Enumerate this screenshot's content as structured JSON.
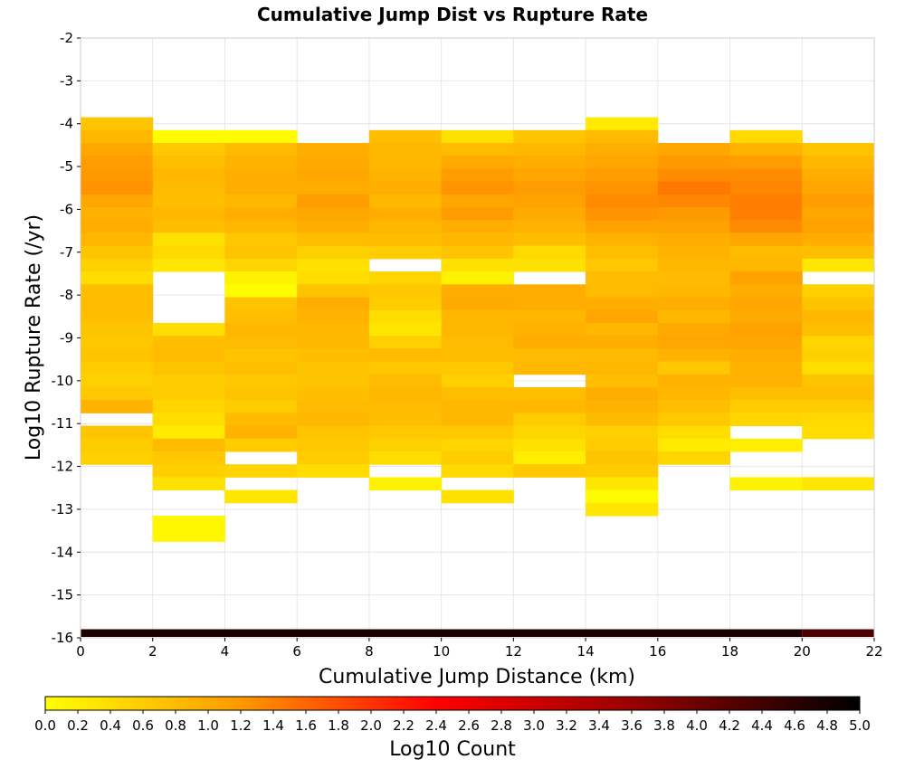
{
  "chart_data": {
    "type": "heatmap",
    "title": "Cumulative Jump Dist vs Rupture Rate",
    "xlabel": "Cumulative Jump Distance (km)",
    "ylabel": "Log10 Rupture Rate (/yr)",
    "xlim": [
      0,
      22
    ],
    "ylim": [
      -16,
      -2
    ],
    "x_ticks": [
      0,
      2,
      4,
      6,
      8,
      10,
      12,
      14,
      16,
      18,
      20,
      22
    ],
    "y_ticks": [
      -2,
      -3,
      -4,
      -5,
      -6,
      -7,
      -8,
      -9,
      -10,
      -11,
      -12,
      -13,
      -14,
      -15,
      -16
    ],
    "x_bin_width": 2,
    "y_bin_height": 0.3,
    "grid": true,
    "colorbar": {
      "label": "Log10 Count",
      "range": [
        0,
        5
      ],
      "ticks": [
        "0.0",
        "0.2",
        "0.4",
        "0.6",
        "0.8",
        "1.0",
        "1.2",
        "1.4",
        "1.6",
        "1.8",
        "2.0",
        "2.2",
        "2.4",
        "2.6",
        "2.8",
        "3.0",
        "3.2",
        "3.4",
        "3.6",
        "3.8",
        "4.0",
        "4.2",
        "4.6",
        "4.8",
        "5.0"
      ],
      "tick_values": [
        0,
        0.2,
        0.4,
        0.6,
        0.8,
        1.0,
        1.2,
        1.4,
        1.6,
        1.8,
        2.0,
        2.2,
        2.4,
        2.6,
        2.8,
        3.0,
        3.2,
        3.4,
        3.6,
        3.8,
        4.0,
        4.2,
        4.6,
        4.8,
        5.0
      ],
      "extra_tick": {
        "label": "4.4",
        "value": 4.4
      },
      "colors": [
        "#ffff00",
        "#ff9900",
        "#ff0000",
        "#990000",
        "#000000"
      ]
    },
    "columns": [
      {
        "x": 0,
        "y_top": -3.85,
        "values": [
          0.7,
          0.85,
          1.05,
          1.15,
          1.2,
          1.25,
          1.05,
          0.9,
          0.95,
          0.85,
          0.7,
          0.55,
          0.4,
          0.75,
          0.8,
          0.75,
          0.7,
          0.65,
          0.7,
          0.6,
          0.55,
          0.65,
          0.9,
          null,
          0.7,
          0.6,
          0.55
        ]
      },
      {
        "x": 2,
        "y_top": -4.15,
        "values": [
          0.05,
          0.65,
          0.75,
          0.85,
          0.8,
          0.75,
          0.85,
          0.75,
          0.35,
          0.45,
          0.3,
          null,
          null,
          null,
          null,
          0.4,
          0.75,
          0.8,
          0.7,
          0.6,
          0.6,
          0.5,
          0.4,
          0.25,
          0.8,
          0.65,
          0.55,
          0.35,
          null,
          null,
          0.1,
          0.1
        ]
      },
      {
        "x": 4,
        "y_top": -4.15,
        "values": [
          0.05,
          0.8,
          0.9,
          0.95,
          0.95,
          0.85,
          0.95,
          0.85,
          0.65,
          0.7,
          0.5,
          0.15,
          0.05,
          0.7,
          0.75,
          0.85,
          0.8,
          0.7,
          0.75,
          0.65,
          0.7,
          0.6,
          0.8,
          0.9,
          0.6,
          null,
          0.5,
          null,
          0.3
        ]
      },
      {
        "x": 6,
        "y_top": -4.45,
        "values": [
          0.95,
          1.0,
          1.05,
          0.95,
          1.15,
          1.05,
          0.95,
          0.75,
          0.55,
          0.35,
          0.4,
          0.7,
          0.95,
          0.9,
          0.85,
          0.85,
          0.75,
          0.7,
          0.7,
          0.75,
          0.8,
          0.85,
          0.7,
          0.65,
          0.6,
          0.4
        ]
      },
      {
        "x": 8,
        "y_top": -4.15,
        "values": [
          0.75,
          0.85,
          0.85,
          0.9,
          0.95,
          0.85,
          0.95,
          0.85,
          0.75,
          0.6,
          null,
          0.5,
          0.65,
          0.6,
          0.4,
          0.3,
          0.55,
          0.8,
          0.65,
          0.8,
          0.85,
          0.8,
          0.75,
          0.65,
          0.55,
          0.4,
          null,
          0.15
        ]
      },
      {
        "x": 10,
        "y_top": -4.15,
        "values": [
          0.35,
          0.8,
          1.0,
          1.15,
          1.25,
          1.05,
          1.15,
          0.95,
          0.85,
          0.7,
          0.35,
          0.15,
          0.95,
          1.0,
          0.85,
          0.85,
          0.8,
          0.75,
          0.65,
          0.55,
          0.75,
          0.85,
          0.85,
          0.65,
          0.5,
          0.6,
          0.45,
          null,
          0.35
        ]
      },
      {
        "x": 12,
        "y_top": -4.15,
        "values": [
          0.7,
          0.85,
          0.95,
          1.05,
          1.15,
          1.1,
          1.0,
          0.9,
          0.75,
          0.45,
          0.35,
          null,
          0.95,
          0.95,
          0.85,
          0.9,
          0.95,
          0.8,
          0.85,
          null,
          0.75,
          0.85,
          0.6,
          0.5,
          0.35,
          0.2,
          0.65
        ]
      },
      {
        "x": 14,
        "y_top": -3.85,
        "values": [
          0.25,
          0.8,
          0.95,
          1.05,
          1.15,
          1.25,
          1.3,
          1.25,
          1.1,
          0.9,
          0.75,
          0.65,
          0.8,
          0.8,
          0.95,
          1.05,
          0.85,
          0.95,
          0.8,
          0.85,
          0.75,
          0.95,
          0.9,
          0.8,
          0.55,
          0.6,
          0.7,
          0.6,
          0.3,
          0.05,
          0.3
        ]
      },
      {
        "x": 16,
        "y_top": -4.45,
        "values": [
          1.05,
          1.2,
          1.3,
          1.45,
          1.35,
          1.2,
          1.1,
          0.95,
          0.9,
          0.85,
          0.8,
          0.85,
          0.95,
          0.85,
          1.0,
          1.05,
          0.9,
          0.65,
          0.9,
          0.85,
          0.75,
          0.65,
          0.4,
          0.25,
          0.5
        ]
      },
      {
        "x": 18,
        "y_top": -4.15,
        "values": [
          0.45,
          0.9,
          1.15,
          1.3,
          1.35,
          1.4,
          1.4,
          1.3,
          1.05,
          0.8,
          0.85,
          1.1,
          0.95,
          1.05,
          1.0,
          1.1,
          1.05,
          0.95,
          0.9,
          0.9,
          0.75,
          0.6,
          0.5,
          null,
          0.2,
          null,
          null,
          0.15
        ]
      },
      {
        "x": 20,
        "y_top": -4.45,
        "values": [
          0.7,
          0.85,
          0.95,
          1.05,
          1.15,
          1.05,
          1.1,
          0.95,
          0.75,
          0.3,
          null,
          0.55,
          0.7,
          0.85,
          0.75,
          0.5,
          0.55,
          0.4,
          0.7,
          0.75,
          0.6,
          0.45,
          0.4,
          null,
          null,
          null,
          0.3
        ]
      }
    ],
    "bottom_row": {
      "y": -16,
      "x_ranges": [
        [
          0,
          20
        ],
        [
          20,
          22
        ]
      ],
      "values": [
        4.75,
        4.3
      ]
    }
  }
}
